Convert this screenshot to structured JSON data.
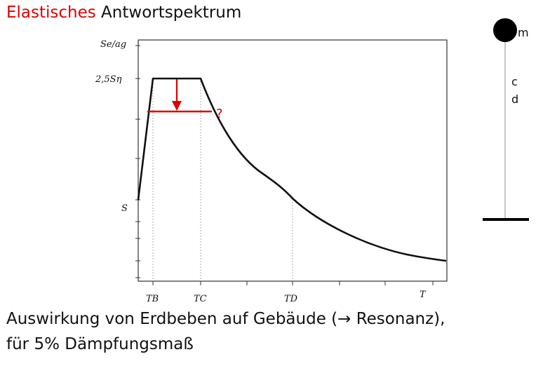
{
  "title": {
    "red_part": "Elastisches",
    "black_part": " Antwortspektrum"
  },
  "caption": {
    "line1": "Auswirkung von Erdbeben auf Gebäude (→ Resonanz),",
    "line2": "für 5% Dämpfungsmaß"
  },
  "chart": {
    "y_axis_label": "Se/ag",
    "y_ticks": {
      "peak": "2,5Sη",
      "base": "S"
    },
    "x_ticks": {
      "tb": "TB",
      "tc": "TC",
      "td": "TD",
      "t": "T"
    },
    "question_mark": "?"
  },
  "oscillator": {
    "mass_label": "m",
    "stiffness_label": "c",
    "damping_label": "d"
  },
  "colors": {
    "accent": "#e00000",
    "text": "#111111"
  }
}
